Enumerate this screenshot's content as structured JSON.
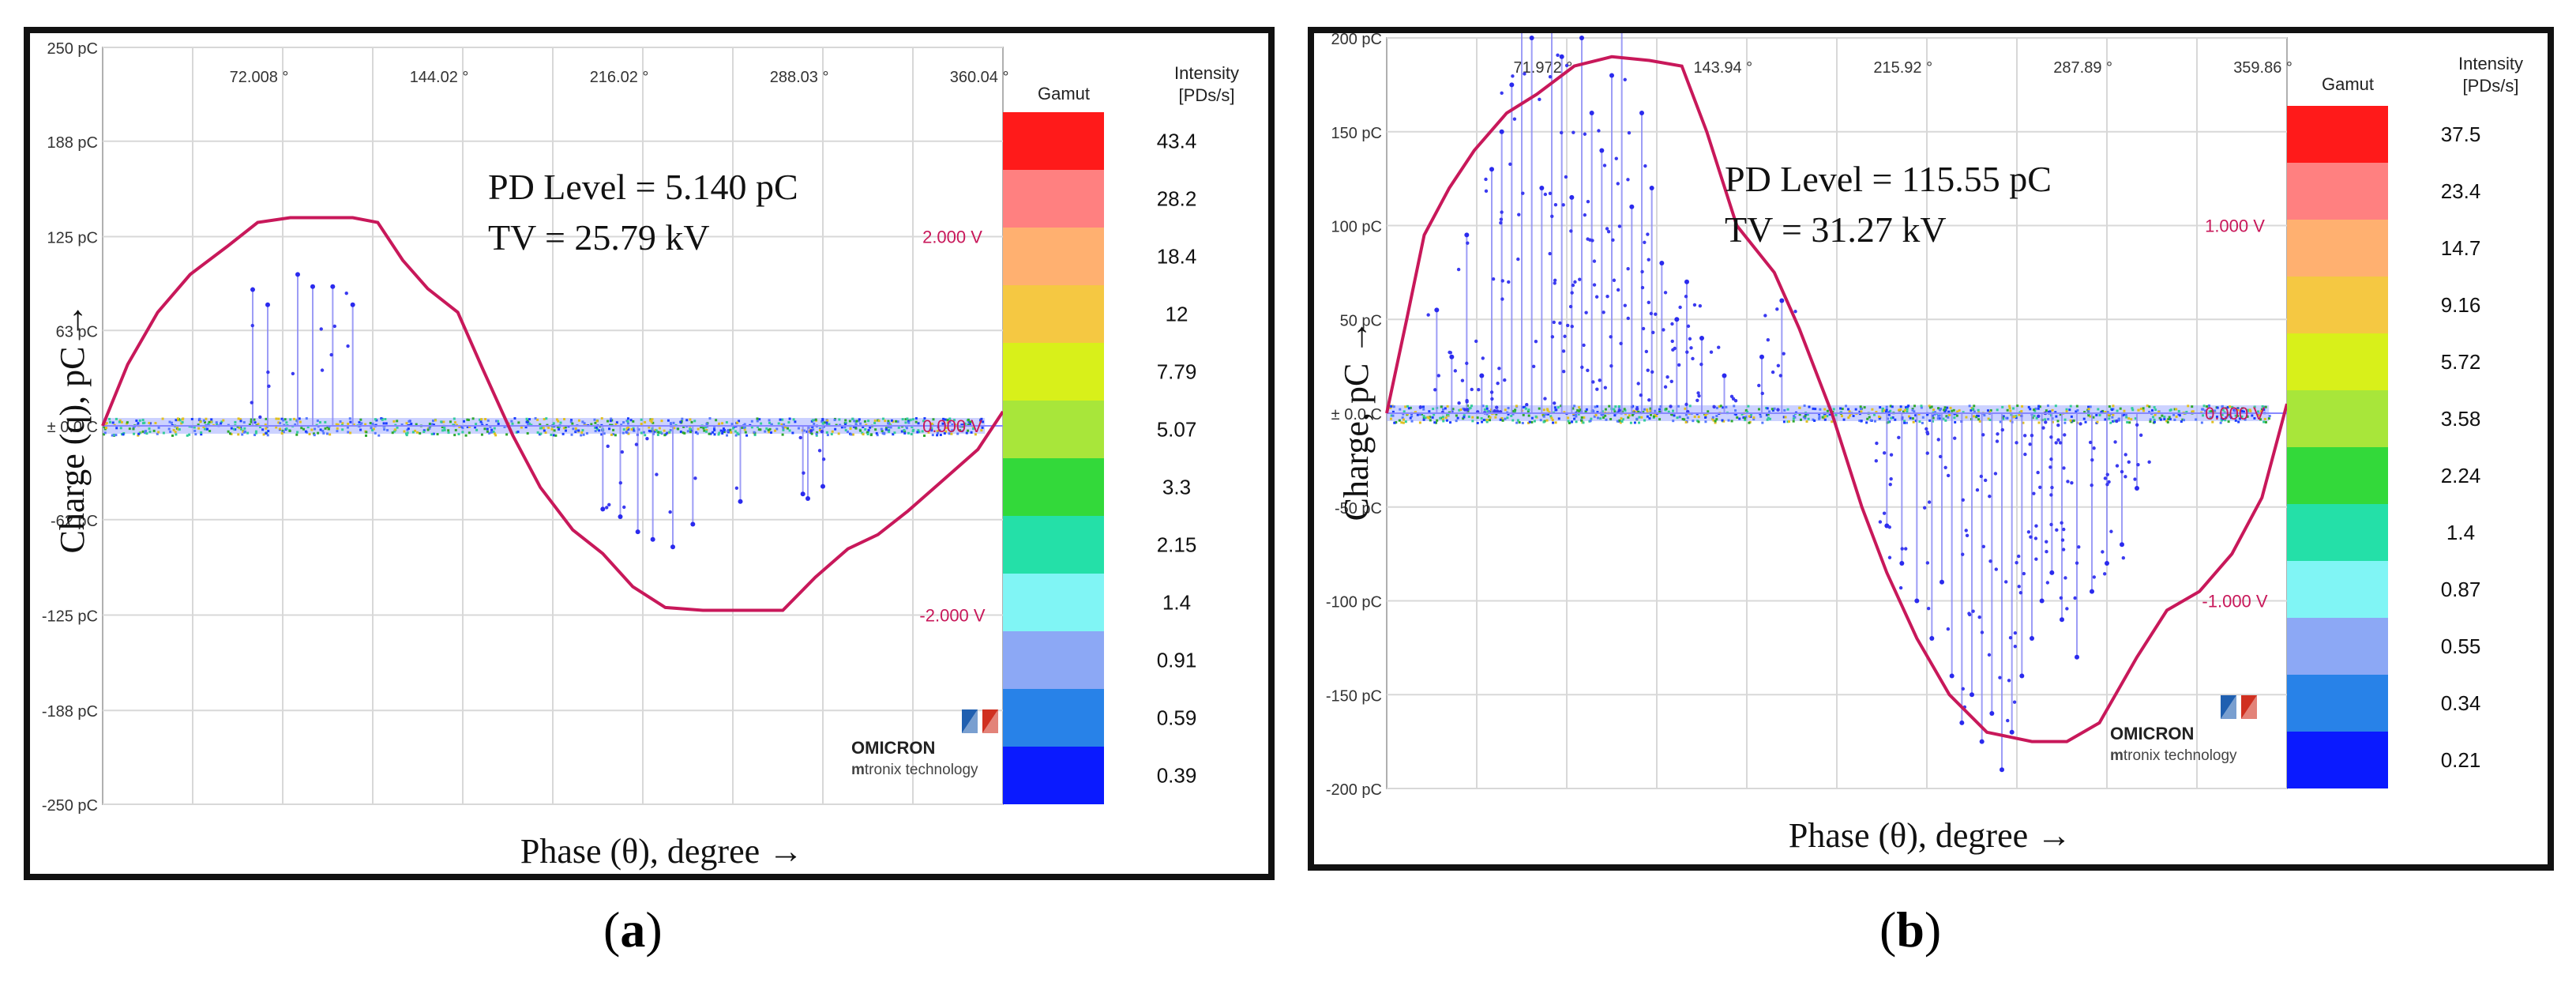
{
  "chart_data": [
    {
      "type": "scatter",
      "panel_label": "a",
      "title": "",
      "xlabel": "Phase (θ), degree →",
      "ylabel": "Charge (q), pC →",
      "x_range": [
        0,
        360
      ],
      "y_range": [
        -250,
        250
      ],
      "x_ticks": [
        {
          "value": 72.008,
          "label": "72.008 °"
        },
        {
          "value": 144.02,
          "label": "144.02 °"
        },
        {
          "value": 216.02,
          "label": "216.02 °"
        },
        {
          "value": 288.03,
          "label": "288.03 °"
        },
        {
          "value": 360.04,
          "label": "360.04 °"
        }
      ],
      "y_ticks": [
        {
          "value": 250,
          "label": "250 pC"
        },
        {
          "value": 188,
          "label": "188 pC"
        },
        {
          "value": 125,
          "label": "125 pC"
        },
        {
          "value": 63,
          "label": "63 pC"
        },
        {
          "value": 0,
          "label": "± 0.0 C"
        },
        {
          "value": -62,
          "label": "-62 pC"
        },
        {
          "value": -125,
          "label": "-125 pC"
        },
        {
          "value": -188,
          "label": "-188 pC"
        },
        {
          "value": -250,
          "label": "-250 pC"
        }
      ],
      "voltage_ticks": [
        {
          "value": 2,
          "label": "2.000 V"
        },
        {
          "value": 0,
          "label": "0.000 V"
        },
        {
          "value": -2,
          "label": "-2.000 V"
        }
      ],
      "voltage_range": [
        -4,
        4
      ],
      "annotations": [
        "PD Level = 5.140 pC",
        "TV = 25.79 kV"
      ],
      "gamut_title": "Gamut",
      "intensity_title": [
        "Intensity",
        "[PDs/s]"
      ],
      "gamut_values": [
        "43.4",
        "28.2",
        "18.4",
        "12",
        "7.79",
        "5.07",
        "3.3",
        "2.15",
        "1.4",
        "0.91",
        "0.59",
        "0.39"
      ],
      "gamut_colors": [
        "#ff1a1a",
        "#ff8080",
        "#ffb070",
        "#f5c842",
        "#d8f01a",
        "#a8e63a",
        "#33d93a",
        "#24e0a8",
        "#80f5f5",
        "#8ca8f5",
        "#2882e8",
        "#0a1aff"
      ],
      "logo": {
        "name": "OMICRON",
        "sub_bold": "m",
        "sub": "tronix technology"
      },
      "voltage_curve": [
        [
          0,
          0
        ],
        [
          10,
          0.65
        ],
        [
          22,
          1.2
        ],
        [
          35,
          1.6
        ],
        [
          50,
          1.9
        ],
        [
          62,
          2.15
        ],
        [
          75,
          2.2
        ],
        [
          90,
          2.2
        ],
        [
          100,
          2.2
        ],
        [
          110,
          2.15
        ],
        [
          120,
          1.75
        ],
        [
          130,
          1.45
        ],
        [
          142,
          1.2
        ],
        [
          152,
          0.6
        ],
        [
          164,
          -0.1
        ],
        [
          175,
          -0.65
        ],
        [
          188,
          -1.1
        ],
        [
          200,
          -1.35
        ],
        [
          212,
          -1.7
        ],
        [
          225,
          -1.92
        ],
        [
          240,
          -1.95
        ],
        [
          258,
          -1.95
        ],
        [
          272,
          -1.95
        ],
        [
          285,
          -1.6
        ],
        [
          298,
          -1.3
        ],
        [
          310,
          -1.15
        ],
        [
          322,
          -0.9
        ],
        [
          335,
          -0.6
        ],
        [
          350,
          -0.25
        ],
        [
          360,
          0.15
        ]
      ],
      "pulses": [
        [
          60,
          90
        ],
        [
          66,
          80
        ],
        [
          78,
          100
        ],
        [
          84,
          92
        ],
        [
          92,
          92
        ],
        [
          100,
          80
        ],
        [
          200,
          -55
        ],
        [
          207,
          -60
        ],
        [
          214,
          -70
        ],
        [
          220,
          -75
        ],
        [
          228,
          -80
        ],
        [
          236,
          -65
        ],
        [
          255,
          -50
        ],
        [
          280,
          -45
        ],
        [
          282,
          -48
        ],
        [
          288,
          -40
        ]
      ]
    },
    {
      "type": "scatter",
      "panel_label": "b",
      "title": "",
      "xlabel": "Phase (θ), degree →",
      "ylabel": "Charge, pC →",
      "x_range": [
        0,
        360
      ],
      "y_range": [
        -200,
        200
      ],
      "x_ticks": [
        {
          "value": 71.972,
          "label": "71.972 °"
        },
        {
          "value": 143.94,
          "label": "143.94 °"
        },
        {
          "value": 215.92,
          "label": "215.92 °"
        },
        {
          "value": 287.89,
          "label": "287.89 °"
        },
        {
          "value": 359.86,
          "label": "359.86 °"
        }
      ],
      "y_ticks": [
        {
          "value": 200,
          "label": "200 pC"
        },
        {
          "value": 150,
          "label": "150 pC"
        },
        {
          "value": 100,
          "label": "100 pC"
        },
        {
          "value": 50,
          "label": "50 pC"
        },
        {
          "value": 0,
          "label": "± 0.0 C"
        },
        {
          "value": -50,
          "label": "-50 pC"
        },
        {
          "value": -100,
          "label": "-100 pC"
        },
        {
          "value": -150,
          "label": "-150 pC"
        },
        {
          "value": -200,
          "label": "-200 pC"
        }
      ],
      "voltage_ticks": [
        {
          "value": 1,
          "label": "1.000 V"
        },
        {
          "value": 0,
          "label": "0.000 V"
        },
        {
          "value": -1,
          "label": "-1.000 V"
        }
      ],
      "voltage_range": [
        -2,
        2
      ],
      "annotations": [
        "PD Level = 115.55 pC",
        "TV = 31.27 kV"
      ],
      "gamut_title": "Gamut",
      "intensity_title": [
        "Intensity",
        "[PDs/s]"
      ],
      "gamut_values": [
        "37.5",
        "23.4",
        "14.7",
        "9.16",
        "5.72",
        "3.58",
        "2.24",
        "1.4",
        "0.87",
        "0.55",
        "0.34",
        "0.21"
      ],
      "gamut_colors": [
        "#ff1a1a",
        "#ff8080",
        "#ffb070",
        "#f5c842",
        "#d8f01a",
        "#a8e63a",
        "#33d93a",
        "#24e0a8",
        "#80f5f5",
        "#8ca8f5",
        "#2882e8",
        "#0a1aff"
      ],
      "logo": {
        "name": "OMICRON",
        "sub_bold": "m",
        "sub": "tronix technology"
      },
      "voltage_curve": [
        [
          0,
          0
        ],
        [
          8,
          0.5
        ],
        [
          15,
          0.95
        ],
        [
          25,
          1.2
        ],
        [
          35,
          1.4
        ],
        [
          48,
          1.6
        ],
        [
          60,
          1.7
        ],
        [
          75,
          1.85
        ],
        [
          90,
          1.9
        ],
        [
          105,
          1.88
        ],
        [
          118,
          1.85
        ],
        [
          128,
          1.5
        ],
        [
          140,
          1.0
        ],
        [
          155,
          0.75
        ],
        [
          165,
          0.45
        ],
        [
          178,
          0.0
        ],
        [
          190,
          -0.5
        ],
        [
          200,
          -0.85
        ],
        [
          212,
          -1.2
        ],
        [
          225,
          -1.5
        ],
        [
          240,
          -1.7
        ],
        [
          258,
          -1.75
        ],
        [
          272,
          -1.75
        ],
        [
          285,
          -1.65
        ],
        [
          300,
          -1.3
        ],
        [
          312,
          -1.05
        ],
        [
          325,
          -0.95
        ],
        [
          338,
          -0.75
        ],
        [
          350,
          -0.45
        ],
        [
          360,
          0.05
        ]
      ],
      "pulses": [
        [
          20,
          55
        ],
        [
          26,
          30
        ],
        [
          32,
          95
        ],
        [
          38,
          20
        ],
        [
          42,
          130
        ],
        [
          46,
          150
        ],
        [
          50,
          175
        ],
        [
          54,
          210
        ],
        [
          58,
          200
        ],
        [
          62,
          120
        ],
        [
          66,
          205
        ],
        [
          70,
          190
        ],
        [
          74,
          115
        ],
        [
          78,
          200
        ],
        [
          82,
          160
        ],
        [
          86,
          140
        ],
        [
          90,
          180
        ],
        [
          94,
          205
        ],
        [
          98,
          110
        ],
        [
          102,
          160
        ],
        [
          106,
          120
        ],
        [
          110,
          80
        ],
        [
          116,
          50
        ],
        [
          120,
          70
        ],
        [
          126,
          40
        ],
        [
          135,
          20
        ],
        [
          150,
          30
        ],
        [
          158,
          60
        ],
        [
          200,
          -60
        ],
        [
          206,
          -80
        ],
        [
          212,
          -100
        ],
        [
          218,
          -120
        ],
        [
          222,
          -90
        ],
        [
          226,
          -140
        ],
        [
          230,
          -165
        ],
        [
          234,
          -150
        ],
        [
          238,
          -175
        ],
        [
          242,
          -160
        ],
        [
          246,
          -190
        ],
        [
          250,
          -170
        ],
        [
          254,
          -140
        ],
        [
          258,
          -120
        ],
        [
          262,
          -100
        ],
        [
          266,
          -85
        ],
        [
          270,
          -110
        ],
        [
          276,
          -130
        ],
        [
          282,
          -95
        ],
        [
          288,
          -80
        ],
        [
          294,
          -70
        ],
        [
          300,
          -40
        ]
      ]
    }
  ]
}
